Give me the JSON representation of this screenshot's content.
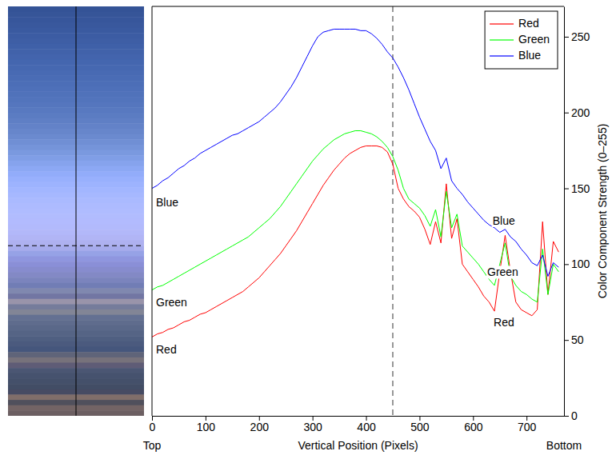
{
  "chart_data": {
    "type": "line",
    "x_label": "Vertical Position (Pixels)",
    "y_label": "Color Component Strength (0–255)",
    "xlim": [
      0,
      770
    ],
    "xticks": [
      0,
      100,
      200,
      300,
      400,
      500,
      600,
      700
    ],
    "xlim_labels": [
      "Top",
      "Bottom"
    ],
    "ylim": [
      0,
      270
    ],
    "yticks": [
      0,
      50,
      100,
      150,
      200,
      250
    ],
    "grid": false,
    "legend": "top-right",
    "reference_x": 450,
    "x": [
      0,
      10,
      20,
      30,
      40,
      50,
      60,
      70,
      80,
      90,
      100,
      110,
      120,
      130,
      140,
      150,
      160,
      170,
      180,
      190,
      200,
      210,
      220,
      230,
      240,
      250,
      260,
      270,
      280,
      290,
      300,
      310,
      320,
      330,
      340,
      350,
      360,
      370,
      380,
      390,
      400,
      410,
      420,
      430,
      440,
      450,
      460,
      470,
      480,
      490,
      500,
      510,
      520,
      530,
      540,
      550,
      560,
      570,
      580,
      590,
      600,
      610,
      620,
      630,
      640,
      650,
      660,
      670,
      680,
      690,
      700,
      710,
      720,
      730,
      740,
      750,
      760
    ],
    "series": [
      {
        "name": "Red",
        "color": "#ff0000",
        "values": [
          52,
          54,
          55,
          57,
          58,
          60,
          62,
          63,
          65,
          67,
          68,
          70,
          72,
          74,
          76,
          78,
          80,
          82,
          85,
          88,
          91,
          95,
          99,
          103,
          107,
          112,
          117,
          122,
          128,
          134,
          140,
          146,
          152,
          157,
          162,
          166,
          170,
          173,
          175,
          177,
          178,
          178,
          178,
          177,
          174,
          166,
          150,
          143,
          138,
          135,
          131,
          123,
          113,
          128,
          114,
          153,
          117,
          130,
          100,
          95,
          90,
          85,
          79,
          75,
          69,
          95,
          119,
          95,
          75,
          70,
          68,
          66,
          70,
          128,
          80,
          115,
          108
        ]
      },
      {
        "name": "Green",
        "color": "#00ff00",
        "values": [
          83,
          85,
          86,
          88,
          90,
          92,
          94,
          96,
          98,
          100,
          102,
          104,
          106,
          108,
          110,
          112,
          114,
          116,
          118,
          121,
          124,
          127,
          130,
          134,
          138,
          143,
          148,
          153,
          158,
          163,
          168,
          172,
          176,
          179,
          182,
          184,
          186,
          187,
          188,
          188,
          187,
          186,
          184,
          181,
          177,
          171,
          162,
          150,
          143,
          140,
          137,
          132,
          125,
          136,
          118,
          148,
          124,
          133,
          112,
          108,
          104,
          100,
          95,
          90,
          86,
          100,
          114,
          92,
          86,
          82,
          80,
          77,
          75,
          110,
          80,
          100,
          95
        ]
      },
      {
        "name": "Blue",
        "color": "#0000ff",
        "values": [
          150,
          152,
          155,
          157,
          160,
          163,
          165,
          168,
          170,
          173,
          175,
          177,
          179,
          181,
          183,
          185,
          186,
          188,
          190,
          192,
          194,
          197,
          200,
          203,
          207,
          212,
          217,
          223,
          230,
          237,
          244,
          250,
          253,
          254,
          255,
          255,
          255,
          255,
          255,
          254,
          254,
          252,
          249,
          245,
          240,
          236,
          230,
          223,
          215,
          206,
          197,
          189,
          181,
          175,
          163,
          170,
          155,
          150,
          146,
          141,
          137,
          133,
          129,
          126,
          124,
          121,
          123,
          118,
          115,
          110,
          106,
          101,
          99,
          106,
          92,
          101,
          98
        ]
      }
    ],
    "annotations": [
      {
        "text": "Blue",
        "x": 3,
        "y": 140
      },
      {
        "text": "Green",
        "x": 3,
        "y": 74
      },
      {
        "text": "Red",
        "x": 3,
        "y": 43
      },
      {
        "text": "Blue",
        "x": 632,
        "y": 128
      },
      {
        "text": "Green",
        "x": 622,
        "y": 94
      },
      {
        "text": "Red",
        "x": 634,
        "y": 61
      }
    ]
  }
}
